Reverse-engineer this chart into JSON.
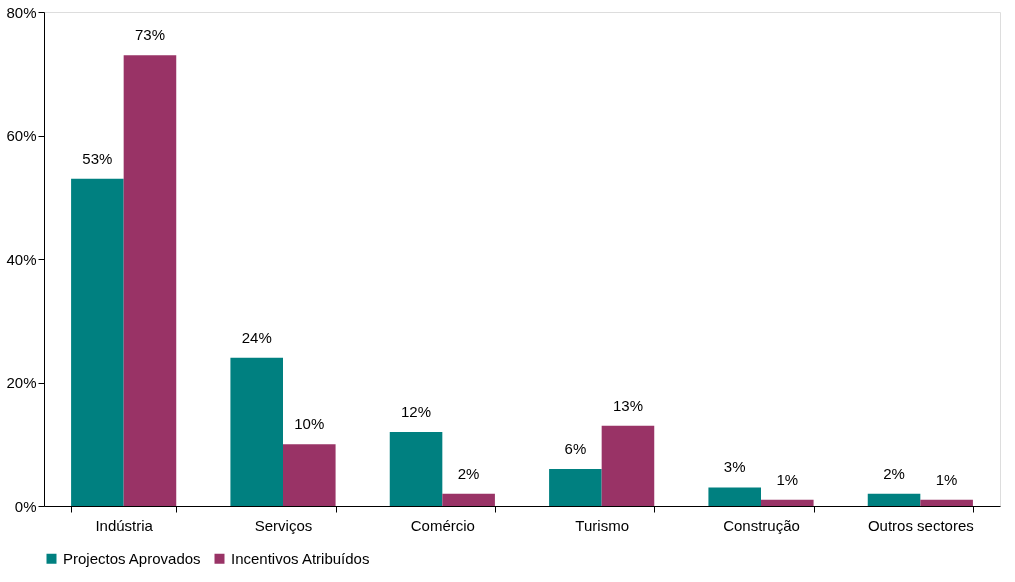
{
  "chart_data": {
    "type": "bar",
    "categories": [
      "Indústria",
      "Serviços",
      "Comércio",
      "Turismo",
      "Construção",
      "Outros sectores"
    ],
    "series": [
      {
        "name": "Projectos Aprovados",
        "color": "#008080",
        "values": [
          53,
          24,
          12,
          6,
          3,
          2
        ],
        "value_labels": [
          "53%",
          "24%",
          "12%",
          "6%",
          "3%",
          "2%"
        ]
      },
      {
        "name": "Incentivos Atribuídos",
        "color": "#993366",
        "values": [
          73,
          10,
          2,
          13,
          1,
          1
        ],
        "value_labels": [
          "73%",
          "10%",
          "2%",
          "13%",
          "1%",
          "1%"
        ]
      }
    ],
    "ylim": [
      0,
      80
    ],
    "yticks": [
      {
        "value": 0,
        "label": "0%"
      },
      {
        "value": 20,
        "label": "20%"
      },
      {
        "value": 40,
        "label": "40%"
      },
      {
        "value": 60,
        "label": "60%"
      },
      {
        "value": 80,
        "label": "80%"
      }
    ],
    "grid": false,
    "legend": "bottom"
  }
}
